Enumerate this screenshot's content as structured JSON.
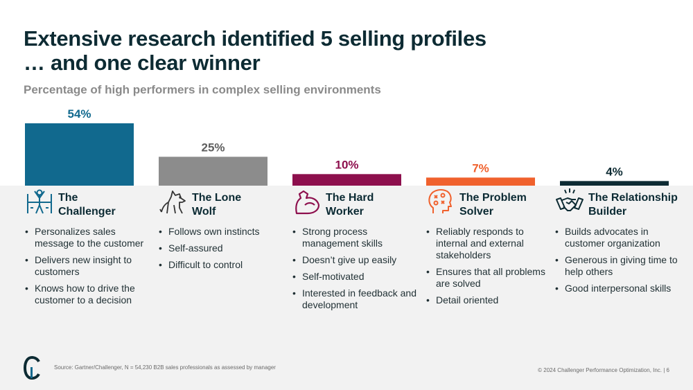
{
  "title_line1": "Extensive research identified 5 selling profiles",
  "title_line2": "… and one clear winner",
  "subtitle": "Percentage of high performers in complex selling environments",
  "chart_data": {
    "type": "bar",
    "categories": [
      "The Challenger",
      "The Lone Wolf",
      "The Hard Worker",
      "The Problem Solver",
      "The Relationship Builder"
    ],
    "values": [
      54,
      25,
      10,
      7,
      4
    ],
    "value_labels": [
      "54%",
      "25%",
      "10%",
      "7%",
      "4%"
    ],
    "colors": [
      "#11698e",
      "#8c8c8c",
      "#8d0f4d",
      "#f0612d",
      "#0d2b33"
    ],
    "title": "",
    "xlabel": "",
    "ylabel": "",
    "ylim": [
      0,
      54
    ]
  },
  "profiles": [
    {
      "name_l1": "The",
      "name_l2": "Challenger",
      "icon": "challenger-person-icon",
      "bullets": [
        "Personalizes sales message to the customer",
        "Delivers new insight to customers",
        "Knows how to drive the customer to a decision"
      ]
    },
    {
      "name_l1": "The Lone",
      "name_l2": "Wolf",
      "icon": "wolf-icon",
      "bullets": [
        "Follows own instincts",
        "Self-assured",
        "Difficult to control"
      ]
    },
    {
      "name_l1": "The Hard",
      "name_l2": "Worker",
      "icon": "flexed-arm-icon",
      "bullets": [
        "Strong process management skills",
        "Doesn’t give up easily",
        "Self-motivated",
        "Interested in feedback and development"
      ]
    },
    {
      "name_l1": "The Problem",
      "name_l2": "Solver",
      "icon": "head-strategy-icon",
      "bullets": [
        "Reliably responds to internal and external stakeholders",
        "Ensures that all problems are solved",
        "Detail oriented"
      ]
    },
    {
      "name_l1": "The Relationship",
      "name_l2": "Builder",
      "icon": "handshake-icon",
      "bullets": [
        "Builds advocates in customer organization",
        "Generous in giving time to help others",
        "Good interpersonal skills"
      ]
    }
  ],
  "footer": {
    "source": "Source: Gartner/Challenger, N = 54,230 B2B sales professionals as assessed by manager",
    "copyright": "© 2024 Challenger Performance Optimization, Inc.  |  6",
    "logo": "challenger-c-logo"
  }
}
